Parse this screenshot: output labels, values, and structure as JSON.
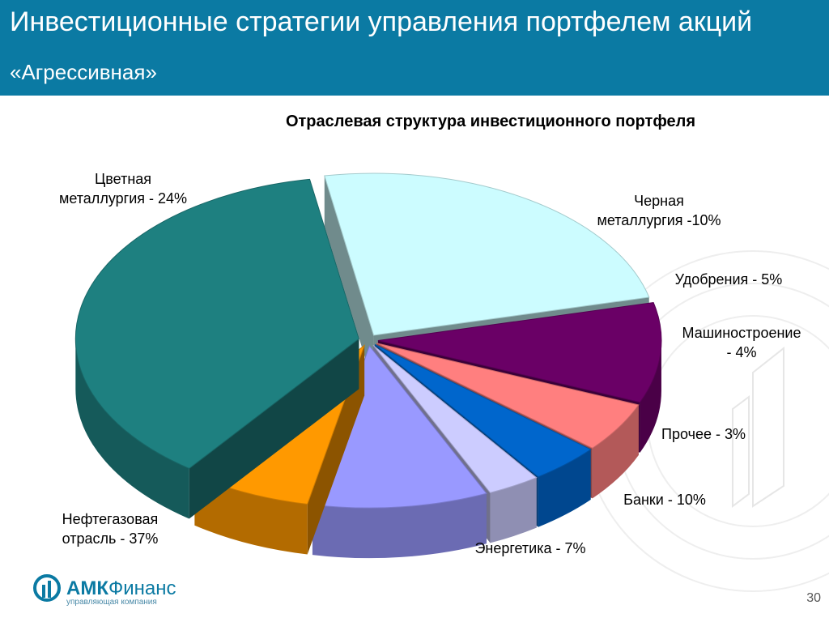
{
  "header": {
    "title": "Инвестиционные стратегии управления портфелем акций",
    "subtitle": "«Агрессивная»"
  },
  "chart_data": {
    "type": "pie",
    "title": "Отраслевая структура инвестиционного портфеля",
    "series": [
      {
        "label_lines": [
          "Цветная",
          "металлургия - 24%"
        ],
        "value": 24,
        "color": "#ccfcff"
      },
      {
        "label_lines": [
          "Черная",
          "металлургия -10%"
        ],
        "value": 10,
        "color": "#6a0066"
      },
      {
        "label_lines": [
          "Удобрения - 5%"
        ],
        "value": 5,
        "color": "#ff7f7f"
      },
      {
        "label_lines": [
          "Машиностроение",
          "- 4%"
        ],
        "value": 4,
        "color": "#0066cc"
      },
      {
        "label_lines": [
          "Прочее - 3%"
        ],
        "value": 3,
        "color": "#ccccff"
      },
      {
        "label_lines": [
          "Банки - 10%"
        ],
        "value": 10,
        "color": "#9999ff"
      },
      {
        "label_lines": [
          "Энергетика - 7%"
        ],
        "value": 7,
        "color": "#ff9900"
      },
      {
        "label_lines": [
          "Нефтегазовая",
          "отрасль - 37%"
        ],
        "value": 37,
        "color": "#1e8080"
      }
    ]
  },
  "footer": {
    "logo_primary": "АМК",
    "logo_secondary": "Финанс",
    "logo_tagline": "управляющая компания",
    "page_number": "30"
  }
}
